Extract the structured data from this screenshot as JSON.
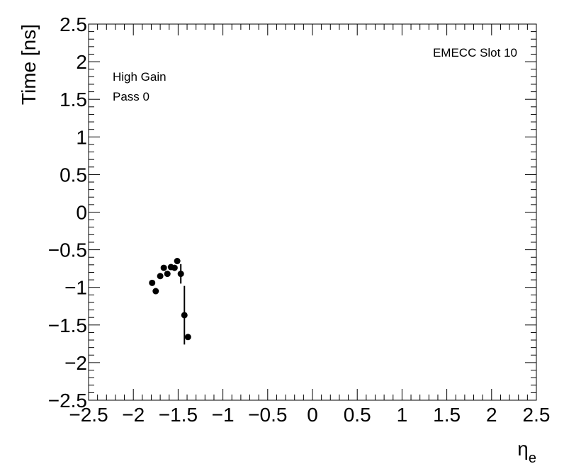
{
  "chart_data": {
    "type": "scatter",
    "texts": [
      "EMECC Slot 10",
      "High Gain",
      "Pass 0"
    ],
    "xlabel": "η",
    "xlabel_sub": "e",
    "ylabel": "Time [ns]",
    "x": [
      -1.79,
      -1.75,
      -1.7,
      -1.66,
      -1.62,
      -1.58,
      -1.54,
      -1.51,
      -1.47,
      -1.43,
      -1.39
    ],
    "values": [
      -0.94,
      -1.05,
      -0.85,
      -0.74,
      -0.82,
      -0.73,
      -0.74,
      -0.65,
      -0.82,
      -1.37,
      -1.66
    ],
    "errors": [
      null,
      null,
      null,
      null,
      null,
      null,
      null,
      null,
      0.13,
      0.39,
      null
    ],
    "color": "#000000",
    "xlim": [
      -2.5,
      2.5
    ],
    "xticks": [
      {
        "value": -2.5,
        "label": "−2.5"
      },
      {
        "value": -2,
        "label": "−2"
      },
      {
        "value": -1.5,
        "label": "−1.5"
      },
      {
        "value": -1,
        "label": "−1"
      },
      {
        "value": -0.5,
        "label": "−0.5"
      },
      0,
      0.5,
      1,
      1.5,
      2,
      2.5
    ],
    "ylim": [
      -2.5,
      2.5
    ],
    "yticks": [
      {
        "value": -2.5,
        "label": "−2.5"
      },
      {
        "value": -2,
        "label": "−2"
      },
      {
        "value": -1.5,
        "label": "−1.5"
      },
      {
        "value": -1,
        "label": "−1"
      },
      {
        "value": -0.5,
        "label": "−0.5"
      },
      0,
      0.5,
      1,
      1.5,
      2,
      2.5
    ],
    "minor_divisions": 5
  }
}
